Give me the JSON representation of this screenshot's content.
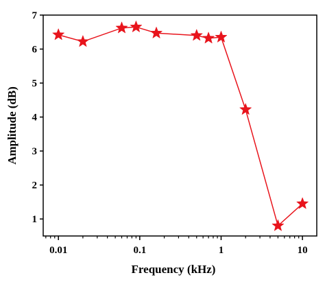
{
  "chart_data": {
    "type": "line",
    "title": "",
    "xlabel": "Frequency (kHz)",
    "ylabel": "Amplitude (dB)",
    "xscale": "log",
    "xlim": [
      0.0065,
      15
    ],
    "ylim": [
      0.5,
      7
    ],
    "x_ticks": [
      0.01,
      0.1,
      1,
      10
    ],
    "x_tick_labels": [
      "0.01",
      "0.1",
      "1",
      "10"
    ],
    "y_ticks": [
      1,
      2,
      3,
      4,
      5,
      6,
      7
    ],
    "y_tick_labels": [
      "1",
      "2",
      "3",
      "4",
      "5",
      "6",
      "7"
    ],
    "grid": false,
    "legend": "none",
    "marker": "star",
    "series": [
      {
        "color": "#e8141c",
        "x": [
          0.01,
          0.02,
          0.06,
          0.09,
          0.16,
          0.5,
          0.7,
          1.0,
          2.0,
          5.0,
          10.0
        ],
        "y": [
          6.42,
          6.22,
          6.62,
          6.65,
          6.47,
          6.4,
          6.32,
          6.35,
          4.22,
          0.8,
          1.45
        ]
      }
    ]
  }
}
